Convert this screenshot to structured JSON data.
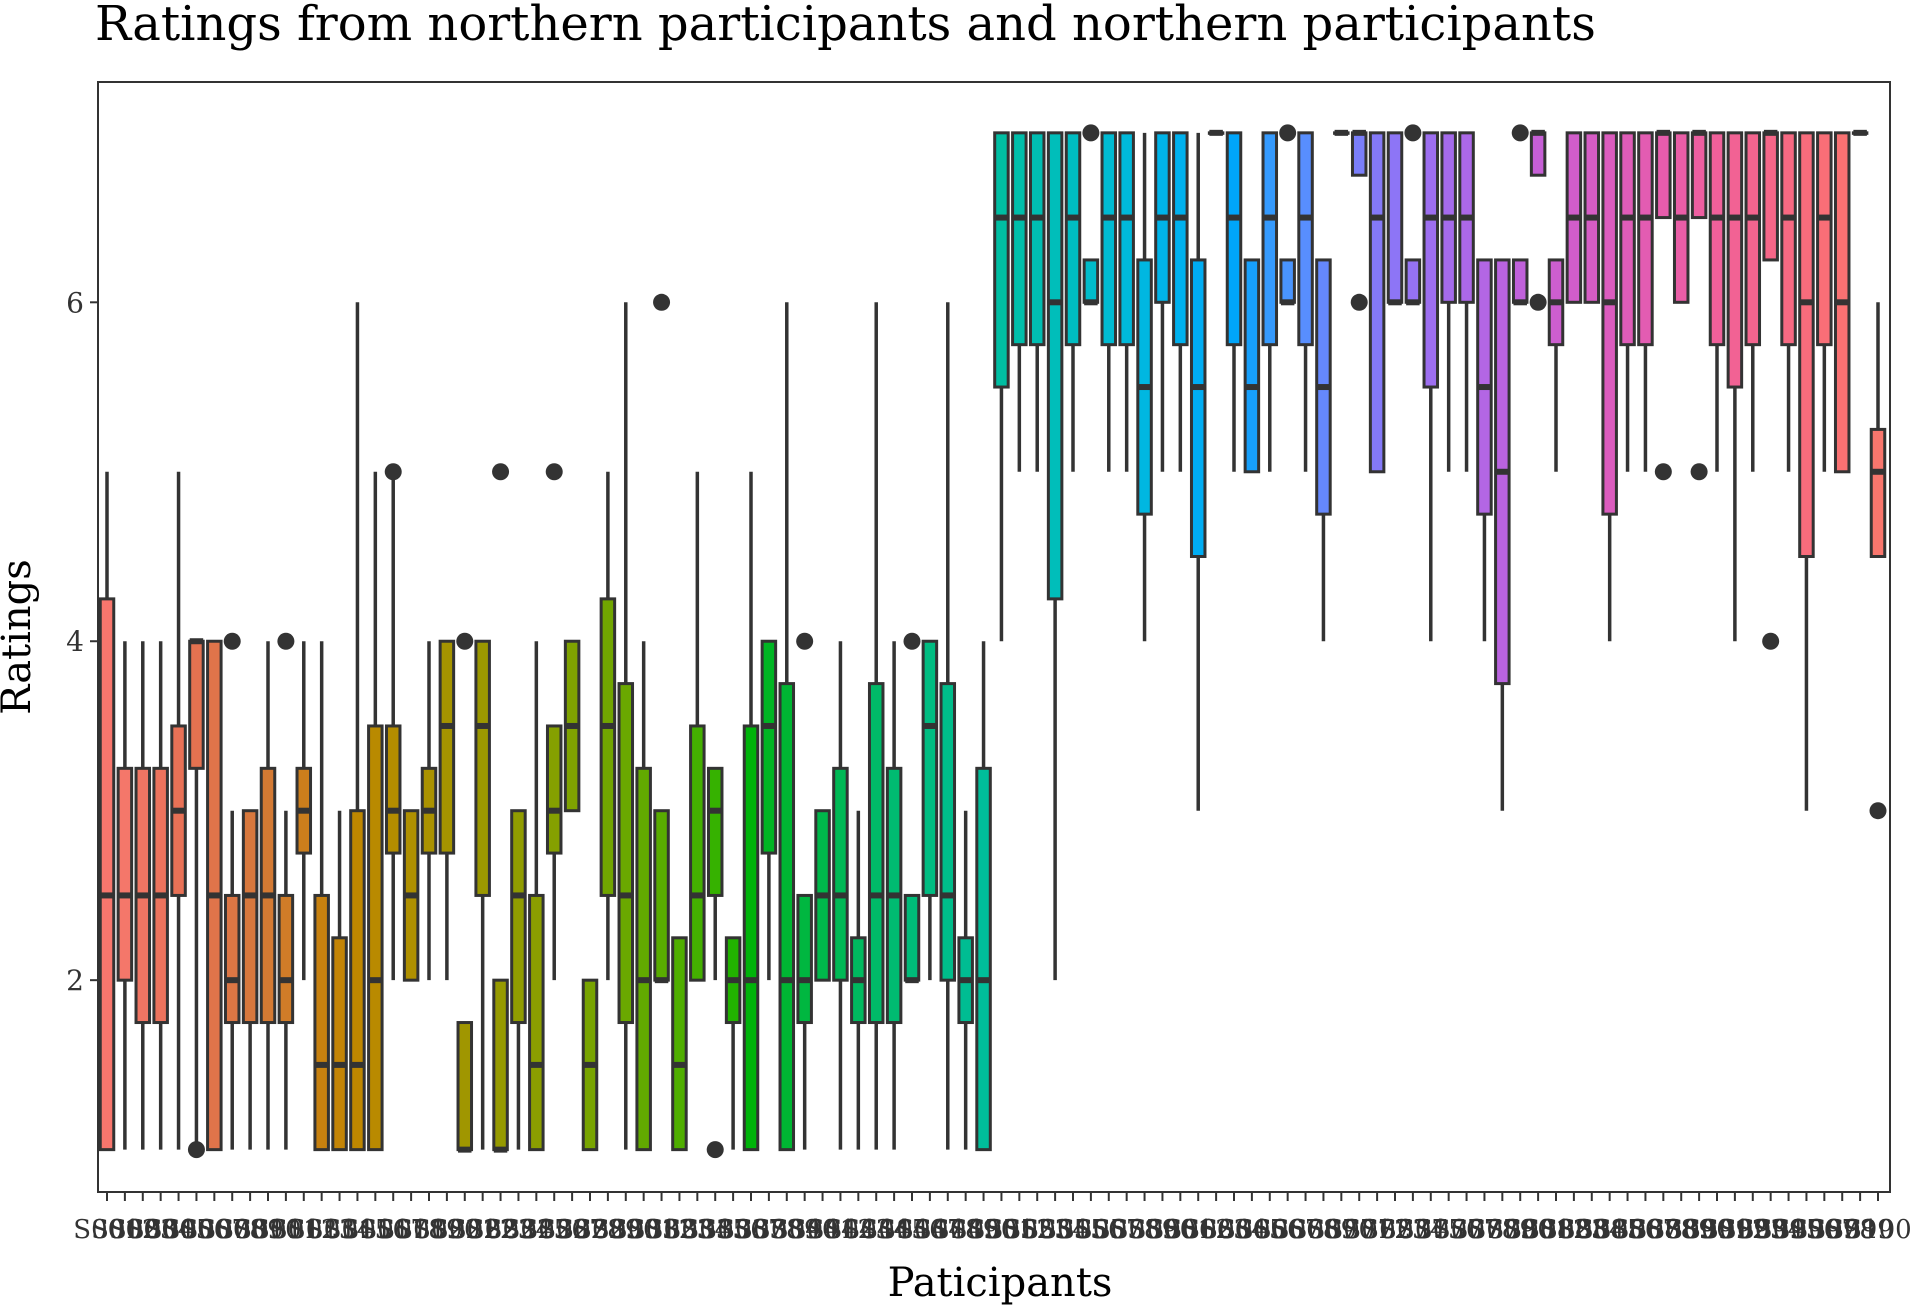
{
  "chart_data": {
    "type": "boxplot",
    "title": "Ratings from northern participants and northern participants",
    "xlabel": "Paticipants",
    "ylabel": "Ratings",
    "ylim": [
      0.75,
      7.3
    ],
    "yticks": [
      2,
      4,
      6
    ],
    "grid": false,
    "legend": "none",
    "boxes": [
      {
        "label": "S001",
        "min": 1,
        "q1": 1,
        "median": 2.5,
        "q3": 4.25,
        "max": 5,
        "color": "#F8766D"
      },
      {
        "label": "S002",
        "min": 1,
        "q1": 2,
        "median": 2.5,
        "q3": 3.25,
        "max": 4,
        "color": "#F4776A"
      },
      {
        "label": "S003",
        "min": 1,
        "q1": 1.75,
        "median": 2.5,
        "q3": 3.25,
        "max": 4,
        "color": "#F07563"
      },
      {
        "label": "S004",
        "min": 1,
        "q1": 1.75,
        "median": 2.5,
        "q3": 3.25,
        "max": 4,
        "color": "#EC735D"
      },
      {
        "label": "S005",
        "min": 1,
        "q1": 2.5,
        "median": 3,
        "q3": 3.5,
        "max": 5,
        "color": "#E87156"
      },
      {
        "label": "S006",
        "min": 1,
        "q1": 3.25,
        "median": 4,
        "q3": 4,
        "max": 4,
        "outliers": [
          1
        ],
        "color": "#E47250"
      },
      {
        "label": "S007",
        "min": 1,
        "q1": 1,
        "median": 2.5,
        "q3": 4,
        "max": 4,
        "color": "#E0744A"
      },
      {
        "label": "S008",
        "min": 1,
        "q1": 1.75,
        "median": 2,
        "q3": 2.5,
        "max": 3,
        "outliers": [
          4
        ],
        "color": "#DC7644"
      },
      {
        "label": "S009",
        "min": 1,
        "q1": 1.75,
        "median": 2.5,
        "q3": 3,
        "max": 3,
        "color": "#D8783D"
      },
      {
        "label": "S010",
        "min": 1,
        "q1": 1.75,
        "median": 2.5,
        "q3": 3.25,
        "max": 4,
        "color": "#D47A33"
      },
      {
        "label": "S011",
        "min": 1,
        "q1": 1.75,
        "median": 2,
        "q3": 2.5,
        "max": 3,
        "outliers": [
          4
        ],
        "color": "#D07C28"
      },
      {
        "label": "S012",
        "min": 2,
        "q1": 2.75,
        "median": 3,
        "q3": 3.25,
        "max": 4,
        "color": "#CB7E1C"
      },
      {
        "label": "S013",
        "min": 1,
        "q1": 1,
        "median": 1.5,
        "q3": 2.5,
        "max": 4,
        "color": "#C7810F"
      },
      {
        "label": "S014",
        "min": 1,
        "q1": 1,
        "median": 1.5,
        "q3": 2.25,
        "max": 3,
        "color": "#C38406"
      },
      {
        "label": "S015",
        "min": 1,
        "q1": 1,
        "median": 1.5,
        "q3": 3,
        "max": 6,
        "color": "#BE8700"
      },
      {
        "label": "S016",
        "min": 1,
        "q1": 1,
        "median": 2,
        "q3": 3.5,
        "max": 5,
        "color": "#B98A00"
      },
      {
        "label": "S017",
        "min": 2,
        "q1": 2.75,
        "median": 3,
        "q3": 3.5,
        "max": 5,
        "outliers": [
          5
        ],
        "color": "#B48D00"
      },
      {
        "label": "S018",
        "min": 2,
        "q1": 2,
        "median": 2.5,
        "q3": 3,
        "max": 3,
        "color": "#AF9000"
      },
      {
        "label": "S019",
        "min": 2,
        "q1": 2.75,
        "median": 3,
        "q3": 3.25,
        "max": 4,
        "color": "#AA9200"
      },
      {
        "label": "S020",
        "min": 2,
        "q1": 2.75,
        "median": 3.5,
        "q3": 4,
        "max": 4,
        "color": "#A59400"
      },
      {
        "label": "S021",
        "min": 1,
        "q1": 1,
        "median": 1,
        "q3": 1.75,
        "max": 1.75,
        "outliers": [
          4
        ],
        "color": "#A09600"
      },
      {
        "label": "S022",
        "min": 1,
        "q1": 2.5,
        "median": 3.5,
        "q3": 4,
        "max": 4,
        "color": "#9B9800"
      },
      {
        "label": "S023",
        "min": 1,
        "q1": 1,
        "median": 1,
        "q3": 2,
        "max": 2,
        "outliers": [
          5
        ],
        "color": "#969A00"
      },
      {
        "label": "S024",
        "min": 1,
        "q1": 1.75,
        "median": 2.5,
        "q3": 3,
        "max": 3,
        "color": "#909C00"
      },
      {
        "label": "S025",
        "min": 1,
        "q1": 1,
        "median": 1.5,
        "q3": 2.5,
        "max": 4,
        "color": "#8B9E00"
      },
      {
        "label": "S026",
        "min": 2,
        "q1": 2.75,
        "median": 3,
        "q3": 3.5,
        "max": 3.5,
        "outliers": [
          5
        ],
        "color": "#85A000"
      },
      {
        "label": "S027",
        "min": 3,
        "q1": 3,
        "median": 3.5,
        "q3": 4,
        "max": 4,
        "color": "#7FA200"
      },
      {
        "label": "S028",
        "min": 1,
        "q1": 1,
        "median": 1.5,
        "q3": 2,
        "max": 2,
        "color": "#78A400"
      },
      {
        "label": "S029",
        "min": 2,
        "q1": 2.5,
        "median": 3.5,
        "q3": 4.25,
        "max": 5,
        "color": "#71A600"
      },
      {
        "label": "S030",
        "min": 1,
        "q1": 1.75,
        "median": 2.5,
        "q3": 3.75,
        "max": 6,
        "color": "#6AA800"
      },
      {
        "label": "S031",
        "min": 1,
        "q1": 1,
        "median": 2,
        "q3": 3.25,
        "max": 4,
        "color": "#62AA00"
      },
      {
        "label": "S032",
        "min": 2,
        "q1": 2,
        "median": 2,
        "q3": 3,
        "max": 3,
        "outliers": [
          6
        ],
        "color": "#59AC00"
      },
      {
        "label": "S033",
        "min": 1,
        "q1": 1,
        "median": 1.5,
        "q3": 2.25,
        "max": 2.25,
        "color": "#4FAE00"
      },
      {
        "label": "S034",
        "min": 2,
        "q1": 2,
        "median": 2.5,
        "q3": 3.5,
        "max": 5,
        "color": "#44B000"
      },
      {
        "label": "S035",
        "min": 2,
        "q1": 2.5,
        "median": 3,
        "q3": 3.25,
        "max": 3.25,
        "outliers": [
          1
        ],
        "color": "#36B200"
      },
      {
        "label": "S036",
        "min": 1,
        "q1": 1.75,
        "median": 2,
        "q3": 2.25,
        "max": 2.25,
        "color": "#22B300"
      },
      {
        "label": "S037",
        "min": 1,
        "q1": 1,
        "median": 2,
        "q3": 3.5,
        "max": 5,
        "color": "#00B40A"
      },
      {
        "label": "S038",
        "min": 2,
        "q1": 2.75,
        "median": 3.5,
        "q3": 4,
        "max": 4,
        "color": "#00B523"
      },
      {
        "label": "S039",
        "min": 1,
        "q1": 1,
        "median": 2,
        "q3": 3.75,
        "max": 6,
        "color": "#00B633"
      },
      {
        "label": "S040",
        "min": 1,
        "q1": 1.75,
        "median": 2,
        "q3": 2.5,
        "max": 2.5,
        "outliers": [
          4
        ],
        "color": "#00B740"
      },
      {
        "label": "S041",
        "min": 2,
        "q1": 2,
        "median": 2.5,
        "q3": 3,
        "max": 3,
        "color": "#00B84B"
      },
      {
        "label": "S042",
        "min": 1,
        "q1": 2,
        "median": 2.5,
        "q3": 3.25,
        "max": 4,
        "color": "#00B955"
      },
      {
        "label": "S043",
        "min": 1,
        "q1": 1.75,
        "median": 2,
        "q3": 2.25,
        "max": 3,
        "color": "#00BA5F"
      },
      {
        "label": "S044",
        "min": 1,
        "q1": 1.75,
        "median": 2.5,
        "q3": 3.75,
        "max": 6,
        "color": "#00BA68"
      },
      {
        "label": "S045",
        "min": 1,
        "q1": 1.75,
        "median": 2.5,
        "q3": 3.25,
        "max": 4,
        "color": "#00BB71"
      },
      {
        "label": "S046",
        "min": 2,
        "q1": 2,
        "median": 2,
        "q3": 2.5,
        "max": 2.5,
        "outliers": [
          4
        ],
        "color": "#00BC79"
      },
      {
        "label": "S047",
        "min": 2,
        "q1": 2.5,
        "median": 3.5,
        "q3": 4,
        "max": 4,
        "color": "#00BC81"
      },
      {
        "label": "S048",
        "min": 1,
        "q1": 2,
        "median": 2.5,
        "q3": 3.75,
        "max": 6,
        "color": "#00BD8A"
      },
      {
        "label": "S049",
        "min": 1,
        "q1": 1.75,
        "median": 2,
        "q3": 2.25,
        "max": 3,
        "color": "#00BD92"
      },
      {
        "label": "S050",
        "min": 1,
        "q1": 1,
        "median": 2,
        "q3": 3.25,
        "max": 4,
        "color": "#00BE9A"
      },
      {
        "label": "S051",
        "min": 4,
        "q1": 5.5,
        "median": 6.5,
        "q3": 7,
        "max": 7,
        "color": "#00BEA2"
      },
      {
        "label": "S052",
        "min": 5,
        "q1": 5.75,
        "median": 6.5,
        "q3": 7,
        "max": 7,
        "color": "#00BEAA"
      },
      {
        "label": "S053",
        "min": 5,
        "q1": 5.75,
        "median": 6.5,
        "q3": 7,
        "max": 7,
        "color": "#00BEB2"
      },
      {
        "label": "S054",
        "min": 2,
        "q1": 4.25,
        "median": 6,
        "q3": 7,
        "max": 7,
        "color": "#00BEBA"
      },
      {
        "label": "S055",
        "min": 5,
        "q1": 5.75,
        "median": 6.5,
        "q3": 7,
        "max": 7,
        "color": "#00BDC2"
      },
      {
        "label": "S056",
        "min": 6,
        "q1": 6,
        "median": 6,
        "q3": 6.25,
        "max": 6.25,
        "outliers": [
          7
        ],
        "color": "#00BCCA"
      },
      {
        "label": "S057",
        "min": 5,
        "q1": 5.75,
        "median": 6.5,
        "q3": 7,
        "max": 7,
        "color": "#00BBD2"
      },
      {
        "label": "S058",
        "min": 5,
        "q1": 5.75,
        "median": 6.5,
        "q3": 7,
        "max": 7,
        "color": "#00B9DA"
      },
      {
        "label": "S059",
        "min": 4,
        "q1": 4.75,
        "median": 5.5,
        "q3": 6.25,
        "max": 7,
        "color": "#00B7E1"
      },
      {
        "label": "S060",
        "min": 5,
        "q1": 6,
        "median": 6.5,
        "q3": 7,
        "max": 7,
        "color": "#00B4E8"
      },
      {
        "label": "S061",
        "min": 5,
        "q1": 5.75,
        "median": 6.5,
        "q3": 7,
        "max": 7,
        "color": "#00B1EE"
      },
      {
        "label": "S062",
        "min": 3,
        "q1": 4.5,
        "median": 5.5,
        "q3": 6.25,
        "max": 7,
        "color": "#00ADF3"
      },
      {
        "label": "S063",
        "min": 7,
        "q1": 7,
        "median": 7,
        "q3": 7,
        "max": 7,
        "color": "#00A9F7"
      },
      {
        "label": "S064",
        "min": 5,
        "q1": 5.75,
        "median": 6.5,
        "q3": 7,
        "max": 7,
        "color": "#00A5FA"
      },
      {
        "label": "S065",
        "min": 5,
        "q1": 5,
        "median": 5.5,
        "q3": 6.25,
        "max": 6.25,
        "color": "#17A0FC"
      },
      {
        "label": "S066",
        "min": 5,
        "q1": 5.75,
        "median": 6.5,
        "q3": 7,
        "max": 7,
        "color": "#359AFD"
      },
      {
        "label": "S067",
        "min": 6,
        "q1": 6,
        "median": 6,
        "q3": 6.25,
        "max": 6.25,
        "outliers": [
          7
        ],
        "color": "#4994FE"
      },
      {
        "label": "S068",
        "min": 5,
        "q1": 5.75,
        "median": 6.5,
        "q3": 7,
        "max": 7,
        "color": "#588EFE"
      },
      {
        "label": "S069",
        "min": 4,
        "q1": 4.75,
        "median": 5.5,
        "q3": 6.25,
        "max": 6.25,
        "color": "#6588FD"
      },
      {
        "label": "S070",
        "min": 7,
        "q1": 7,
        "median": 7,
        "q3": 7,
        "max": 7,
        "color": "#7082FC"
      },
      {
        "label": "S071",
        "min": 6.75,
        "q1": 6.75,
        "median": 7,
        "q3": 7,
        "max": 7,
        "outliers": [
          6
        ],
        "color": "#7A7EFA"
      },
      {
        "label": "S072",
        "min": 5,
        "q1": 5,
        "median": 6.5,
        "q3": 7,
        "max": 7,
        "color": "#8479F8"
      },
      {
        "label": "S073",
        "min": 6,
        "q1": 6,
        "median": 6,
        "q3": 7,
        "max": 7,
        "color": "#8D75F6"
      },
      {
        "label": "S074",
        "min": 6,
        "q1": 6,
        "median": 6,
        "q3": 6.25,
        "max": 6.25,
        "outliers": [
          7
        ],
        "color": "#9572F3"
      },
      {
        "label": "S075",
        "min": 4,
        "q1": 5.5,
        "median": 6.5,
        "q3": 7,
        "max": 7,
        "color": "#9D6EF0"
      },
      {
        "label": "S076",
        "min": 5,
        "q1": 6,
        "median": 6.5,
        "q3": 7,
        "max": 7,
        "color": "#A56BEC"
      },
      {
        "label": "S077",
        "min": 5,
        "q1": 6,
        "median": 6.5,
        "q3": 7,
        "max": 7,
        "color": "#AC68E8"
      },
      {
        "label": "S078",
        "min": 4,
        "q1": 4.75,
        "median": 5.5,
        "q3": 6.25,
        "max": 6.25,
        "color": "#B366E4"
      },
      {
        "label": "S079",
        "min": 3,
        "q1": 3.75,
        "median": 5,
        "q3": 6.25,
        "max": 6.25,
        "color": "#BA63DF"
      },
      {
        "label": "S080",
        "min": 6,
        "q1": 6,
        "median": 6,
        "q3": 6.25,
        "max": 6.25,
        "outliers": [
          7
        ],
        "color": "#C061DA"
      },
      {
        "label": "S081",
        "min": 6.75,
        "q1": 6.75,
        "median": 7,
        "q3": 7,
        "max": 7,
        "outliers": [
          6
        ],
        "color": "#C65FD5"
      },
      {
        "label": "S082",
        "min": 5,
        "q1": 5.75,
        "median": 6,
        "q3": 6.25,
        "max": 6.25,
        "color": "#CC5ECF"
      },
      {
        "label": "S083",
        "min": 6,
        "q1": 6,
        "median": 6.5,
        "q3": 7,
        "max": 7,
        "color": "#D15DCA"
      },
      {
        "label": "S084",
        "min": 6,
        "q1": 6,
        "median": 6.5,
        "q3": 7,
        "max": 7,
        "color": "#D65CC4"
      },
      {
        "label": "S085",
        "min": 4,
        "q1": 4.75,
        "median": 6,
        "q3": 7,
        "max": 7,
        "color": "#DB5CBE"
      },
      {
        "label": "S086",
        "min": 5,
        "q1": 5.75,
        "median": 6.5,
        "q3": 7,
        "max": 7,
        "color": "#DF5CB8"
      },
      {
        "label": "S087",
        "min": 5,
        "q1": 5.75,
        "median": 6.5,
        "q3": 7,
        "max": 7,
        "color": "#E35CB2"
      },
      {
        "label": "S088",
        "min": 6.5,
        "q1": 6.5,
        "median": 7,
        "q3": 7,
        "max": 7,
        "outliers": [
          5
        ],
        "color": "#E75CAC"
      },
      {
        "label": "S089",
        "min": 6,
        "q1": 6,
        "median": 6.5,
        "q3": 7,
        "max": 7,
        "color": "#EA5DA6"
      },
      {
        "label": "S090",
        "min": 6.5,
        "q1": 6.5,
        "median": 7,
        "q3": 7,
        "max": 7,
        "outliers": [
          5
        ],
        "color": "#ED5EA0"
      },
      {
        "label": "S091",
        "min": 5,
        "q1": 5.75,
        "median": 6.5,
        "q3": 7,
        "max": 7,
        "color": "#F0609A"
      },
      {
        "label": "S092",
        "min": 4,
        "q1": 5.5,
        "median": 6.5,
        "q3": 7,
        "max": 7,
        "color": "#F26294"
      },
      {
        "label": "S093",
        "min": 5,
        "q1": 5.75,
        "median": 6.5,
        "q3": 7,
        "max": 7,
        "color": "#F4648E"
      },
      {
        "label": "S094",
        "min": 6.25,
        "q1": 6.25,
        "median": 7,
        "q3": 7,
        "max": 7,
        "outliers": [
          4
        ],
        "color": "#F66688"
      },
      {
        "label": "S095",
        "min": 5,
        "q1": 5.75,
        "median": 6.5,
        "q3": 7,
        "max": 7,
        "color": "#F76982"
      },
      {
        "label": "S096",
        "min": 3,
        "q1": 4.5,
        "median": 6,
        "q3": 7,
        "max": 7,
        "color": "#F86C7C"
      },
      {
        "label": "S097",
        "min": 5,
        "q1": 5.75,
        "median": 6.5,
        "q3": 7,
        "max": 7,
        "color": "#F96E77"
      },
      {
        "label": "S098",
        "min": 5,
        "q1": 5,
        "median": 6,
        "q3": 7,
        "max": 7,
        "color": "#F97172"
      },
      {
        "label": "S099",
        "min": 7,
        "q1": 7,
        "median": 7,
        "q3": 7,
        "max": 7,
        "color": "#F9746E"
      },
      {
        "label": "S100",
        "min": 4.5,
        "q1": 4.5,
        "median": 5,
        "q3": 5.25,
        "max": 6,
        "outliers": [
          3
        ],
        "color": "#F8766D"
      }
    ]
  }
}
